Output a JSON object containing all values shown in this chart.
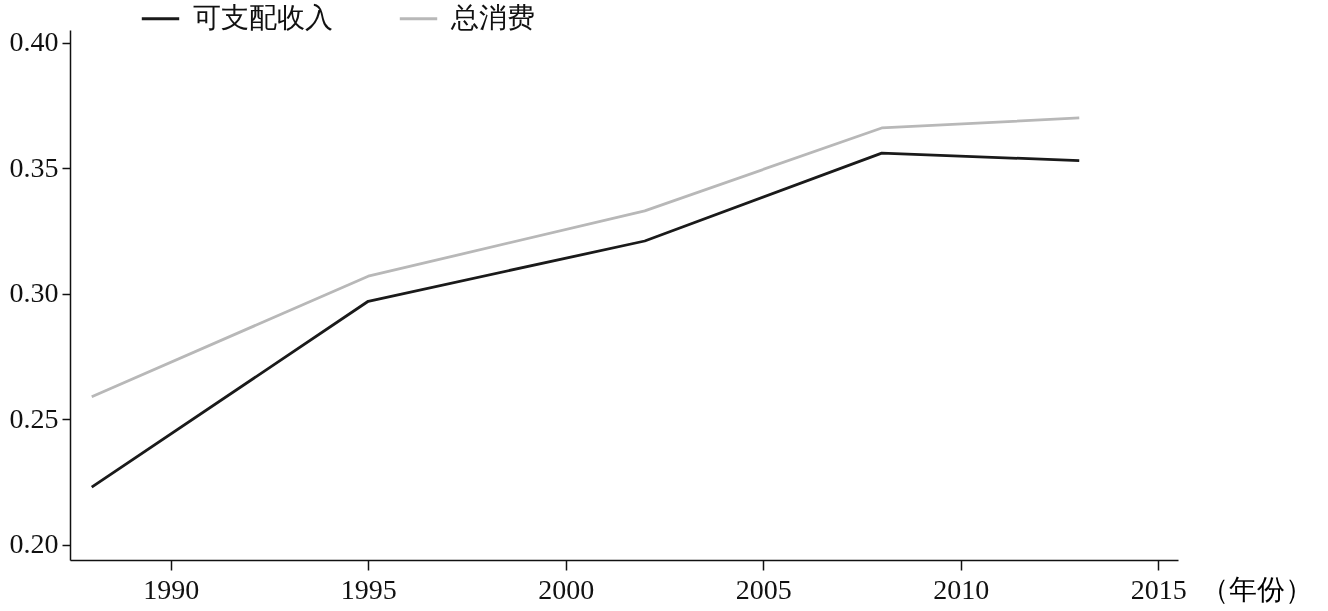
{
  "chart_data": {
    "type": "line",
    "xlabel": "（年份）",
    "x": [
      1988,
      1995,
      2002,
      2008,
      2013
    ],
    "series": [
      {
        "name": "可支配收入",
        "color": "#1a1a1a",
        "values": [
          0.223,
          0.297,
          0.321,
          0.356,
          0.353
        ]
      },
      {
        "name": "总消费",
        "color": "#b8b8b8",
        "values": [
          0.259,
          0.307,
          0.333,
          0.366,
          0.37
        ]
      }
    ],
    "xlim": [
      1987.45,
      2015.5
    ],
    "xticks": [
      1990,
      1995,
      2000,
      2005,
      2010,
      2015
    ],
    "ylim": [
      0.194,
      0.405
    ],
    "yticks": [
      {
        "value": 0.2,
        "label": "0.20"
      },
      {
        "value": 0.25,
        "label": "0.25"
      },
      {
        "value": 0.3,
        "label": "0.30"
      },
      {
        "value": 0.35,
        "label": "0.35"
      },
      {
        "value": 0.4,
        "label": "0.40"
      }
    ],
    "grid": false,
    "legend": "top left",
    "marker": "none",
    "line_style": "solid"
  }
}
